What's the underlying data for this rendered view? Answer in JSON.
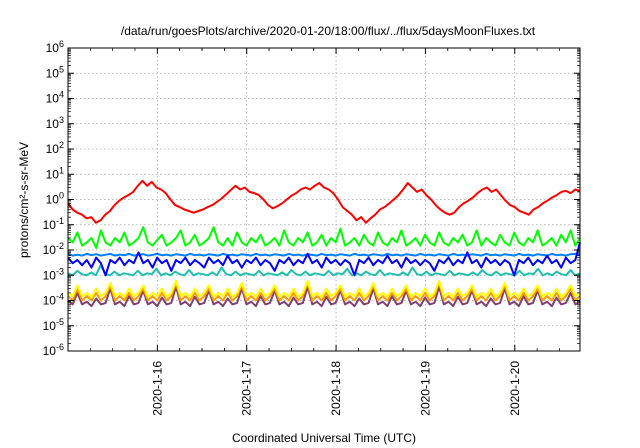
{
  "chart_data": {
    "type": "line",
    "title": "/data/run/goesPlots/archive/2020-01-20/18:00/flux/../flux/5daysMoonFluxes.txt",
    "xlabel": "Coordinated Universal Time (UTC)",
    "ylabel": "protons/cm²-s-sr-MeV",
    "yscale": "log",
    "ylim": [
      1e-06,
      1000000.0
    ],
    "xlim": [
      "2020-01-15 00:55",
      "2020-01-20 18:00"
    ],
    "grid": true,
    "y_ticks": [
      {
        "base": "10",
        "exp": "-6"
      },
      {
        "base": "10",
        "exp": "-5"
      },
      {
        "base": "10",
        "exp": "-4"
      },
      {
        "base": "10",
        "exp": "-3"
      },
      {
        "base": "10",
        "exp": "-2"
      },
      {
        "base": "10",
        "exp": "-1"
      },
      {
        "base": "10",
        "exp": "0"
      },
      {
        "base": "10",
        "exp": "1"
      },
      {
        "base": "10",
        "exp": "2"
      },
      {
        "base": "10",
        "exp": "3"
      },
      {
        "base": "10",
        "exp": "4"
      },
      {
        "base": "10",
        "exp": "5"
      },
      {
        "base": "10",
        "exp": "6"
      }
    ],
    "x_ticks": [
      "2020-1-16",
      "2020-1-17",
      "2020-1-18",
      "2020-1-19",
      "2020-1-20"
    ],
    "x_tick_days": [
      1,
      2,
      3,
      4,
      5
    ],
    "x_start_day": -0.0,
    "x_end_day": 5.73,
    "series": [
      {
        "color": "#ff0000",
        "values": [
          0.7,
          0.4,
          0.3,
          0.25,
          0.18,
          0.2,
          0.12,
          0.15,
          0.25,
          0.35,
          0.6,
          0.9,
          1.2,
          1.5,
          2.0,
          3.5,
          5.5,
          3.5,
          5.0,
          3.0,
          2.5,
          1.8,
          1.0,
          0.6,
          0.5,
          0.4,
          0.35,
          0.3,
          0.35,
          0.4,
          0.5,
          0.6,
          0.8,
          1.1,
          1.6,
          2.4,
          3.5,
          2.5,
          3.0,
          2.0,
          1.8,
          1.5,
          1.0,
          0.6,
          0.45,
          0.55,
          0.7,
          1.0,
          1.4,
          1.8,
          2.5,
          3.0,
          2.5,
          3.5,
          4.5,
          3.0,
          2.5,
          1.8,
          1.0,
          0.5,
          0.35,
          0.25,
          0.15,
          0.2,
          0.12,
          0.18,
          0.25,
          0.4,
          0.5,
          0.7,
          1.0,
          1.5,
          2.5,
          4.5,
          3.0,
          2.0,
          2.5,
          1.5,
          1.0,
          0.6,
          0.4,
          0.3,
          0.25,
          0.3,
          0.5,
          0.7,
          0.9,
          1.2,
          1.8,
          2.5,
          3.0,
          2.0,
          2.5,
          1.5,
          0.9,
          0.6,
          0.5,
          0.35,
          0.3,
          0.25,
          0.4,
          0.5,
          0.7,
          0.9,
          1.2,
          1.5,
          2.0,
          2.2,
          1.8,
          2.5,
          2.2
        ]
      },
      {
        "color": "#00ff00",
        "values": [
          0.03,
          0.02,
          0.05,
          0.015,
          0.02,
          0.03,
          0.012,
          0.06,
          0.02,
          0.015,
          0.03,
          0.02,
          0.05,
          0.015,
          0.02,
          0.03,
          0.08,
          0.02,
          0.015,
          0.025,
          0.04,
          0.015,
          0.02,
          0.03,
          0.06,
          0.015,
          0.02,
          0.04,
          0.015,
          0.02,
          0.03,
          0.08,
          0.02,
          0.015,
          0.03,
          0.015,
          0.05,
          0.02,
          0.015,
          0.03,
          0.02,
          0.04,
          0.015,
          0.02,
          0.03,
          0.015,
          0.06,
          0.02,
          0.015,
          0.03,
          0.02,
          0.05,
          0.015,
          0.02,
          0.04,
          0.015,
          0.03,
          0.02,
          0.07,
          0.015,
          0.02,
          0.03,
          0.015,
          0.04,
          0.02,
          0.015,
          0.05,
          0.02,
          0.015,
          0.03,
          0.02,
          0.06,
          0.015,
          0.02,
          0.03,
          0.015,
          0.04,
          0.02,
          0.015,
          0.05,
          0.02,
          0.015,
          0.03,
          0.02,
          0.04,
          0.015,
          0.02,
          0.06,
          0.015,
          0.03,
          0.02,
          0.015,
          0.04,
          0.02,
          0.015,
          0.05,
          0.02,
          0.015,
          0.03,
          0.02,
          0.06,
          0.015,
          0.02,
          0.03,
          0.015,
          0.04,
          0.02,
          0.06,
          0.015,
          0.03
        ]
      },
      {
        "color": "#0000ff",
        "values": [
          0.005,
          0.003,
          0.004,
          0.0025,
          0.004,
          0.002,
          0.005,
          0.003,
          0.001,
          0.004,
          0.003,
          0.005,
          0.0025,
          0.004,
          0.003,
          0.008,
          0.003,
          0.004,
          0.002,
          0.005,
          0.003,
          0.004,
          0.0015,
          0.004,
          0.003,
          0.005,
          0.0025,
          0.004,
          0.003,
          0.002,
          0.005,
          0.003,
          0.004,
          0.0025,
          0.006,
          0.003,
          0.004,
          0.002,
          0.004,
          0.003,
          0.005,
          0.0025,
          0.004,
          0.003,
          0.0015,
          0.004,
          0.003,
          0.005,
          0.0025,
          0.004,
          0.003,
          0.007,
          0.003,
          0.004,
          0.002,
          0.005,
          0.003,
          0.004,
          0.0025,
          0.004,
          0.003,
          0.001,
          0.004,
          0.003,
          0.005,
          0.0025,
          0.004,
          0.003,
          0.006,
          0.003,
          0.004,
          0.002,
          0.005,
          0.003,
          0.004,
          0.0025,
          0.004,
          0.003,
          0.0015,
          0.004,
          0.003,
          0.005,
          0.0025,
          0.004,
          0.003,
          0.008,
          0.003,
          0.004,
          0.002,
          0.005,
          0.003,
          0.004,
          0.0025,
          0.004,
          0.003,
          0.001,
          0.004,
          0.003,
          0.005,
          0.0025,
          0.004,
          0.003,
          0.006,
          0.003,
          0.004,
          0.002,
          0.005,
          0.003,
          0.004,
          0.02
        ]
      },
      {
        "color": "#0080ff",
        "values": [
          0.007,
          0.006,
          0.0065,
          0.006,
          0.007,
          0.0062,
          0.0068,
          0.006,
          0.0065,
          0.007,
          0.006,
          0.0066,
          0.0062,
          0.007,
          0.006,
          0.0065,
          0.0068,
          0.006,
          0.0064,
          0.007,
          0.0062,
          0.0066,
          0.006,
          0.0068,
          0.0064,
          0.006,
          0.007,
          0.0062,
          0.0066,
          0.006,
          0.0068,
          0.0064,
          0.006,
          0.007,
          0.0062,
          0.0066,
          0.006,
          0.0068,
          0.0064,
          0.006,
          0.007,
          0.0062,
          0.0066,
          0.006,
          0.0068,
          0.0064,
          0.006,
          0.007,
          0.0062,
          0.0066,
          0.006,
          0.0068,
          0.0064,
          0.006,
          0.007,
          0.0062,
          0.0066,
          0.006,
          0.0068,
          0.0064,
          0.006,
          0.007,
          0.0062,
          0.0066,
          0.006,
          0.0068,
          0.0064,
          0.006,
          0.007,
          0.0062,
          0.0066,
          0.006,
          0.0068,
          0.0064,
          0.006,
          0.007,
          0.0062,
          0.0066,
          0.006,
          0.0068,
          0.0064,
          0.006,
          0.007,
          0.0062,
          0.0066,
          0.006,
          0.0068,
          0.0064,
          0.006,
          0.007,
          0.0062,
          0.0066,
          0.006,
          0.0068,
          0.0064,
          0.006,
          0.007,
          0.0062,
          0.0066,
          0.006,
          0.0068,
          0.0064,
          0.006,
          0.007,
          0.0062,
          0.0066,
          0.006,
          0.0068,
          0.007,
          0.0065
        ]
      },
      {
        "color": "#20c0b0",
        "values": [
          0.0012,
          0.001,
          0.0015,
          0.0011,
          0.001,
          0.0013,
          0.001,
          0.0025,
          0.0011,
          0.001,
          0.0014,
          0.001,
          0.0012,
          0.0011,
          0.001,
          0.0015,
          0.001,
          0.0012,
          0.0011,
          0.0018,
          0.001,
          0.0012,
          0.001,
          0.0014,
          0.0011,
          0.001,
          0.0016,
          0.001,
          0.0012,
          0.0011,
          0.001,
          0.0013,
          0.001,
          0.002,
          0.0011,
          0.001,
          0.0014,
          0.001,
          0.0012,
          0.0011,
          0.001,
          0.0015,
          0.001,
          0.0012,
          0.0011,
          0.001,
          0.0013,
          0.001,
          0.0016,
          0.0011,
          0.001,
          0.0014,
          0.001,
          0.0012,
          0.0011,
          0.001,
          0.0015,
          0.001,
          0.0012,
          0.0011,
          0.0018,
          0.001,
          0.0012,
          0.001,
          0.0014,
          0.0011,
          0.001,
          0.0016,
          0.001,
          0.0012,
          0.0011,
          0.001,
          0.0013,
          0.001,
          0.002,
          0.0011,
          0.001,
          0.0014,
          0.001,
          0.0012,
          0.0011,
          0.001,
          0.0015,
          0.001,
          0.0012,
          0.0011,
          0.001,
          0.0013,
          0.001,
          0.0016,
          0.0011,
          0.001,
          0.0014,
          0.001,
          0.0012,
          0.0011,
          0.001,
          0.0015,
          0.001,
          0.0012,
          0.0011,
          0.0018,
          0.001,
          0.0012,
          0.001,
          0.0014,
          0.0011,
          0.001,
          0.0016,
          0.001,
          0.0012
        ]
      },
      {
        "color": "#ffff00",
        "values": [
          0.0002,
          0.00015,
          0.0004,
          0.00015,
          0.0002,
          0.00013,
          0.0003,
          0.00015,
          0.0002,
          0.0005,
          0.00015,
          0.0002,
          0.00014,
          0.0003,
          0.00015,
          0.0002,
          0.0004,
          0.00014,
          0.0002,
          0.00015,
          0.0003,
          0.00014,
          0.0002,
          0.0006,
          0.00015,
          0.0002,
          0.00014,
          0.0003,
          0.00015,
          0.0002,
          0.0004,
          0.00014,
          0.0002,
          0.00015,
          0.0003,
          0.00014,
          0.0002,
          0.0005,
          0.00015,
          0.0002,
          0.00014,
          0.0003,
          0.00015,
          0.0002,
          0.0004,
          0.00014,
          0.0002,
          0.00015,
          0.0003,
          0.00014,
          0.0002,
          0.0006,
          0.00015,
          0.0002,
          0.00014,
          0.0003,
          0.00015,
          0.0002,
          0.0004,
          0.00014,
          0.0002,
          0.00015,
          0.0003,
          0.00014,
          0.0002,
          0.0005,
          0.00015,
          0.0002,
          0.00014,
          0.0003,
          0.00015,
          0.0002,
          0.0004,
          0.00014,
          0.0002,
          0.00015,
          0.0003,
          0.00014,
          0.0002,
          0.0006,
          0.00015,
          0.0002,
          0.00014,
          0.0003,
          0.00015,
          0.0002,
          0.0004,
          0.00014,
          0.0002,
          0.00015,
          0.0003,
          0.00014,
          0.0002,
          0.0005,
          0.00015,
          0.0002,
          0.00014,
          0.0003,
          0.00015,
          0.0002,
          0.0004,
          0.00014,
          0.0002,
          0.00015,
          0.0003,
          0.00014,
          0.0002,
          0.0004,
          0.00015,
          0.0002
        ]
      },
      {
        "color": "#ff9a00",
        "values": [
          0.00015,
          0.0001,
          0.0003,
          0.0001,
          0.00015,
          0.0001,
          0.0002,
          0.0001,
          0.00015,
          0.0004,
          0.0001,
          0.00015,
          0.0001,
          0.0002,
          0.0001,
          0.00015,
          0.0003,
          0.0001,
          0.00015,
          0.0001,
          0.0002,
          0.0001,
          0.00015,
          0.0005,
          0.0001,
          0.00015,
          0.0001,
          0.0002,
          0.0001,
          0.00015,
          0.0003,
          0.0001,
          0.00015,
          0.0001,
          0.0002,
          0.0001,
          0.00015,
          0.0004,
          0.0001,
          0.00015,
          0.0001,
          0.0002,
          0.0001,
          0.00015,
          0.0003,
          0.0001,
          0.00015,
          0.0001,
          0.0002,
          0.0001,
          0.00015,
          0.0005,
          0.0001,
          0.00015,
          0.0001,
          0.0002,
          0.0001,
          0.00015,
          0.0003,
          0.0001,
          0.00015,
          0.0001,
          0.0002,
          0.0001,
          0.00015,
          0.0004,
          0.0001,
          0.00015,
          0.0001,
          0.0002,
          0.0001,
          0.00015,
          0.0003,
          0.0001,
          0.00015,
          0.0001,
          0.0002,
          0.0001,
          0.00015,
          0.0005,
          0.0001,
          0.00015,
          0.0001,
          0.0002,
          0.0001,
          0.00015,
          0.0003,
          0.0001,
          0.00015,
          0.0001,
          0.0002,
          0.0001,
          0.00015,
          0.0004,
          0.0001,
          0.00015,
          0.0001,
          0.0002,
          0.0001,
          0.00015,
          0.0003,
          0.0001,
          0.00015,
          0.0001,
          0.0002,
          0.0001,
          0.00015,
          0.0003,
          0.0001,
          0.00015
        ]
      },
      {
        "color": "#804070",
        "values": [
          0.0001,
          7e-05,
          0.0002,
          7e-05,
          9e-05,
          6e-05,
          0.00012,
          7e-05,
          8e-05,
          0.0003,
          7e-05,
          9e-05,
          6e-05,
          0.00015,
          7e-05,
          8e-05,
          0.00025,
          7e-05,
          9e-05,
          6e-05,
          0.00013,
          7e-05,
          8e-05,
          0.00035,
          7e-05,
          9e-05,
          6e-05,
          0.00014,
          7e-05,
          8e-05,
          0.00025,
          7e-05,
          9e-05,
          6e-05,
          0.00012,
          7e-05,
          8e-05,
          0.0003,
          7e-05,
          9e-05,
          6e-05,
          0.00015,
          7e-05,
          8e-05,
          0.00025,
          7e-05,
          9e-05,
          6e-05,
          0.00013,
          7e-05,
          8e-05,
          0.00035,
          7e-05,
          9e-05,
          6e-05,
          0.00014,
          7e-05,
          8e-05,
          0.00025,
          7e-05,
          9e-05,
          6e-05,
          0.00012,
          7e-05,
          8e-05,
          0.0003,
          7e-05,
          9e-05,
          6e-05,
          0.00015,
          7e-05,
          8e-05,
          0.00025,
          7e-05,
          9e-05,
          6e-05,
          0.00013,
          7e-05,
          8e-05,
          0.00035,
          7e-05,
          9e-05,
          6e-05,
          0.00014,
          7e-05,
          8e-05,
          0.00025,
          7e-05,
          9e-05,
          6e-05,
          0.00012,
          7e-05,
          8e-05,
          0.0003,
          7e-05,
          9e-05,
          6e-05,
          0.00015,
          7e-05,
          8e-05,
          0.00025,
          7e-05,
          9e-05,
          6e-05,
          0.00013,
          7e-05,
          8e-05,
          0.0002,
          7e-05,
          9e-05
        ]
      }
    ]
  }
}
